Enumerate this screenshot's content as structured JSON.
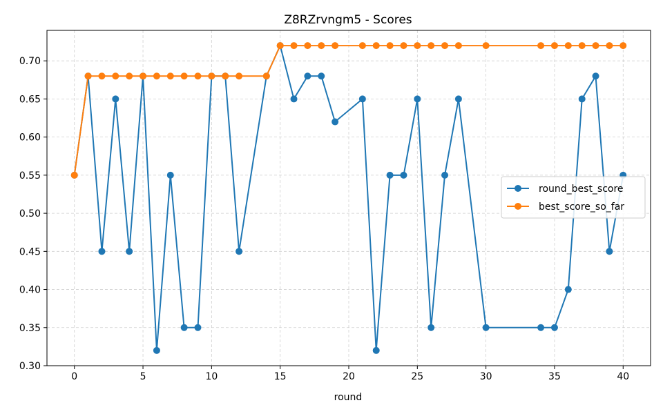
{
  "chart_data": {
    "type": "line",
    "title": "Z8RZrvngm5 - Scores",
    "xlabel": "round",
    "ylabel": "",
    "xlim": [
      -2,
      42
    ],
    "ylim": [
      0.3,
      0.74
    ],
    "xticks": [
      0,
      5,
      10,
      15,
      20,
      25,
      30,
      35,
      40
    ],
    "xtick_labels": [
      "0",
      "5",
      "10",
      "15",
      "20",
      "25",
      "30",
      "35",
      "40"
    ],
    "yticks": [
      0.3,
      0.35,
      0.4,
      0.45,
      0.5,
      0.55,
      0.6,
      0.65,
      0.7
    ],
    "ytick_labels": [
      "0.30",
      "0.35",
      "0.40",
      "0.45",
      "0.50",
      "0.55",
      "0.60",
      "0.65",
      "0.70"
    ],
    "grid": true,
    "legend_position": "center-right",
    "series": [
      {
        "name": "round_best_score",
        "color": "#1f77b4",
        "x": [
          0,
          1,
          2,
          3,
          4,
          5,
          6,
          7,
          8,
          9,
          10,
          11,
          12,
          14,
          15,
          16,
          17,
          18,
          19,
          21,
          22,
          23,
          24,
          25,
          26,
          27,
          28,
          30,
          34,
          35,
          36,
          37,
          38,
          39,
          40
        ],
        "values": [
          0.55,
          0.68,
          0.45,
          0.65,
          0.45,
          0.68,
          0.32,
          0.55,
          0.35,
          0.35,
          0.68,
          0.68,
          0.45,
          0.68,
          0.72,
          0.65,
          0.68,
          0.68,
          0.62,
          0.65,
          0.32,
          0.55,
          0.55,
          0.65,
          0.35,
          0.55,
          0.65,
          0.35,
          0.35,
          0.35,
          0.4,
          0.65,
          0.68,
          0.45,
          0.55
        ]
      },
      {
        "name": "best_score_so_far",
        "color": "#ff7f0e",
        "x": [
          0,
          1,
          2,
          3,
          4,
          5,
          6,
          7,
          8,
          9,
          10,
          11,
          12,
          14,
          15,
          16,
          17,
          18,
          19,
          21,
          22,
          23,
          24,
          25,
          26,
          27,
          28,
          30,
          34,
          35,
          36,
          37,
          38,
          39,
          40
        ],
        "values": [
          0.55,
          0.68,
          0.68,
          0.68,
          0.68,
          0.68,
          0.68,
          0.68,
          0.68,
          0.68,
          0.68,
          0.68,
          0.68,
          0.68,
          0.72,
          0.72,
          0.72,
          0.72,
          0.72,
          0.72,
          0.72,
          0.72,
          0.72,
          0.72,
          0.72,
          0.72,
          0.72,
          0.72,
          0.72,
          0.72,
          0.72,
          0.72,
          0.72,
          0.72,
          0.72
        ]
      }
    ]
  }
}
